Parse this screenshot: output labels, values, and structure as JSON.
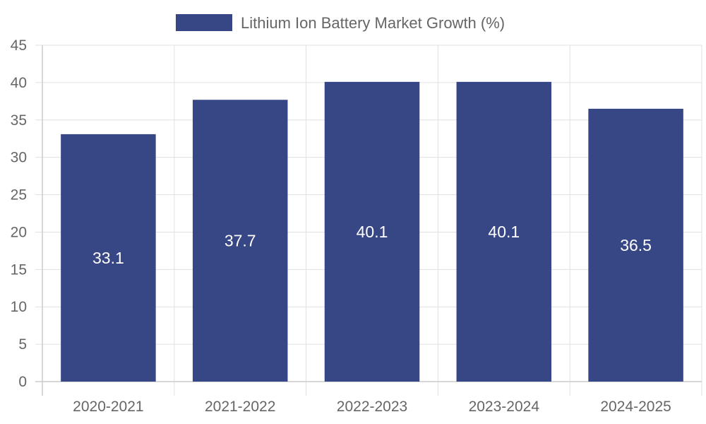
{
  "chart_data": {
    "type": "bar",
    "categories": [
      "2020-2021",
      "2021-2022",
      "2022-2023",
      "2023-2024",
      "2024-2025"
    ],
    "series": [
      {
        "name": "Lithium Ion Battery Market Growth (%)",
        "values": [
          33.1,
          37.7,
          40.1,
          40.1,
          36.5
        ],
        "color": "#374785"
      }
    ],
    "ylim": [
      0,
      45
    ],
    "yticks": [
      0,
      5,
      10,
      15,
      20,
      25,
      30,
      35,
      40,
      45
    ],
    "grid": true,
    "legend": "top-center",
    "data_labels": true
  }
}
